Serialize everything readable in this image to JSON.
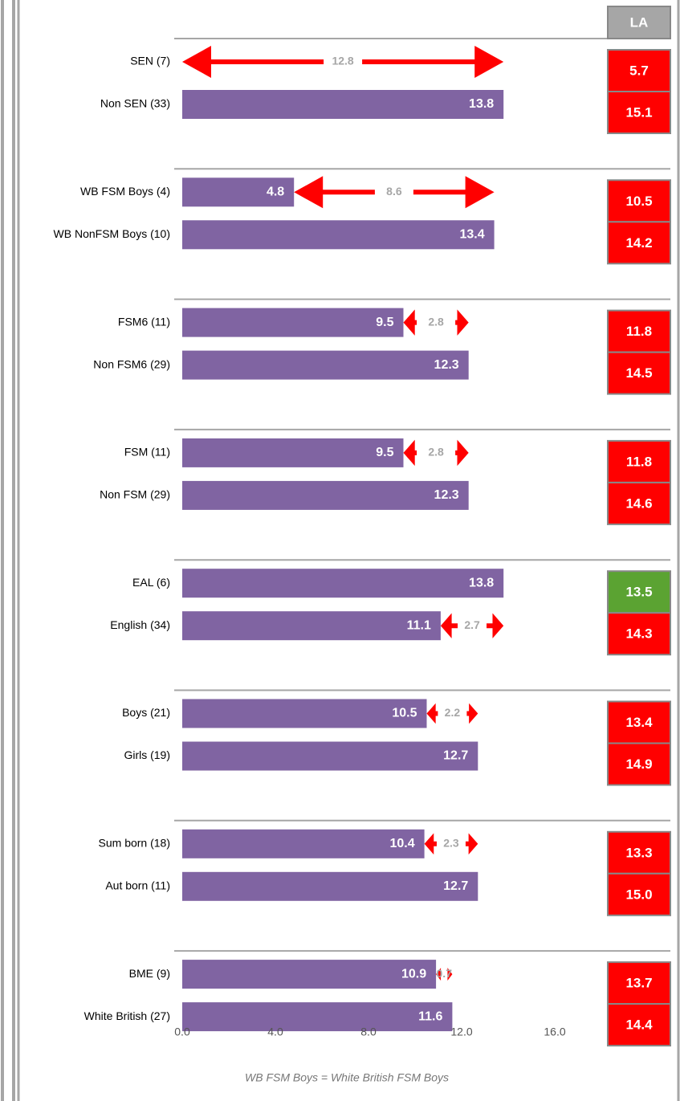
{
  "chart_data": {
    "type": "bar",
    "categories": [
      "SEN (7)",
      "Non SEN (33)",
      "WB FSM Boys (4)",
      "WB NonFSM Boys (10)",
      "FSM6 (11)",
      "Non FSM6 (29)",
      "FSM (11)",
      "Non FSM (29)",
      "EAL (6)",
      "English (34)",
      "Boys (21)",
      "Girls (19)",
      "Sum born (18)",
      "Aut born (11)",
      "BME (9)",
      "White British (27)"
    ],
    "values": [
      0,
      13.8,
      4.8,
      13.4,
      9.5,
      12.3,
      9.5,
      12.3,
      13.8,
      11.1,
      10.5,
      12.7,
      10.4,
      12.7,
      10.9,
      11.6
    ],
    "color": "#8064a2",
    "gaps": [
      12.8,
      8.6,
      2.8,
      2.8,
      2.7,
      2.2,
      2.3,
      0.7
    ],
    "gap_color": "#ff0000",
    "la": {
      "header": "LA",
      "values": [
        5.7,
        15.1,
        10.5,
        14.2,
        11.8,
        14.5,
        11.8,
        14.6,
        13.5,
        14.3,
        13.4,
        14.9,
        13.3,
        15,
        13.7,
        14.4
      ],
      "value_labels": [
        "5.7",
        "15.1",
        "10.5",
        "14.2",
        "11.8",
        "14.5",
        "11.8",
        "14.6",
        "13.5",
        "14.3",
        "13.4",
        "14.9",
        "13.3",
        "15.0",
        "13.7",
        "14.4"
      ],
      "colors": [
        "#ff0000",
        "#ff0000",
        "#ff0000",
        "#ff0000",
        "#ff0000",
        "#ff0000",
        "#ff0000",
        "#ff0000",
        "#5ba332",
        "#ff0000",
        "#ff0000",
        "#ff0000",
        "#ff0000",
        "#ff0000",
        "#ff0000",
        "#ff0000"
      ]
    },
    "xlim": [
      0,
      16
    ],
    "xticks": [
      {
        "value": 0,
        "label": "0.0"
      },
      {
        "value": 4,
        "label": "4.0"
      },
      {
        "value": 8,
        "label": "8.0"
      },
      {
        "value": 12,
        "label": "12.0"
      },
      {
        "value": 16,
        "label": "16.0"
      }
    ],
    "footnote": "WB FSM Boys = White British FSM Boys"
  }
}
